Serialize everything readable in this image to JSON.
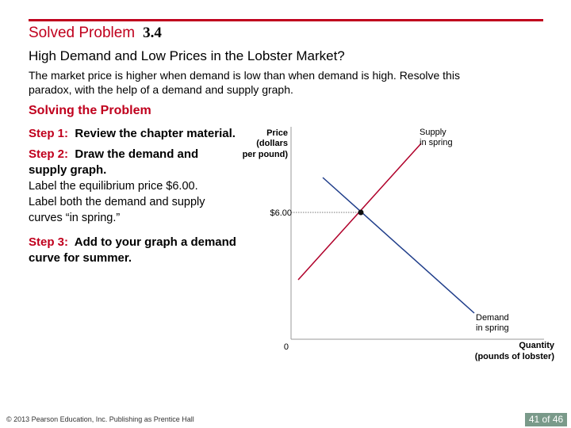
{
  "header": {
    "label": "Solved Problem",
    "number": "3.4",
    "subtitle": "High Demand and Low Prices in the Lobster Market?"
  },
  "intro": "The market price is higher when demand is low than when demand is high. Resolve this paradox, with the help of a demand and supply graph.",
  "section_heading": "Solving the Problem",
  "steps": [
    {
      "number": "Step 1:",
      "title": "Review the chapter material.",
      "body": ""
    },
    {
      "number": "Step 2:",
      "title": "Draw the demand and supply graph.",
      "body": "Label the equilibrium price $6.00. Label both the demand and supply curves “in spring.”"
    },
    {
      "number": "Step 3:",
      "title": "Add to your graph a demand curve for summer.",
      "body": ""
    }
  ],
  "graph": {
    "y_axis_label": [
      "Price",
      "(dollars",
      "per pound)"
    ],
    "x_axis_label": [
      "Quantity",
      "(pounds of lobster)"
    ],
    "origin_label": "0",
    "equilibrium_price_label": "$6.00",
    "equilibrium_price": 6.0,
    "supply_label": [
      "Supply",
      "in spring"
    ],
    "demand_label": [
      "Demand",
      "in spring"
    ],
    "colors": {
      "supply": "#b0002a",
      "demand": "#1f3d8a",
      "axis": "#999999",
      "equilibrium_point": "#111111"
    }
  },
  "footer": {
    "copyright": "© 2013 Pearson Education, Inc. Publishing as Prentice Hall",
    "page": "41 of 46"
  }
}
